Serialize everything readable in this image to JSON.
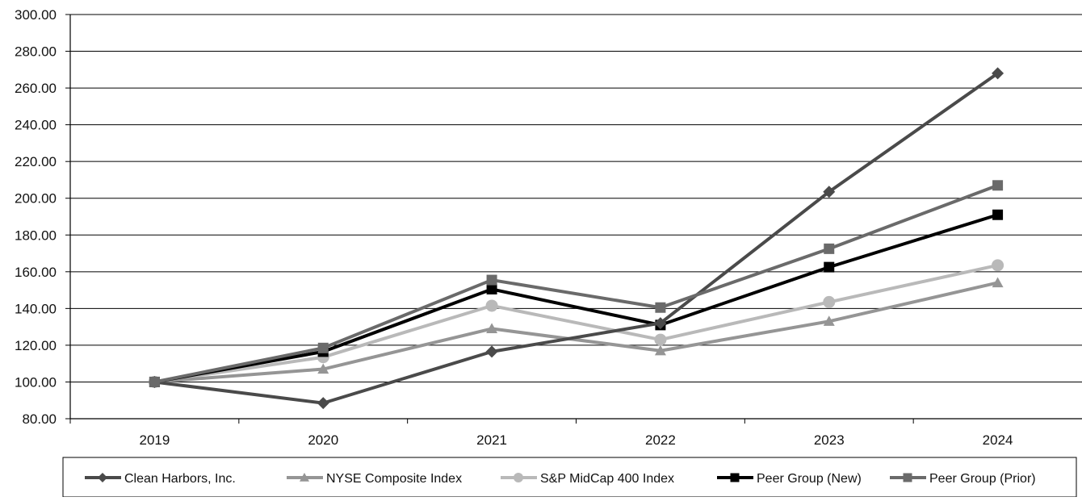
{
  "chart_data": {
    "type": "line",
    "title": "",
    "xlabel": "",
    "ylabel": "",
    "categories": [
      "2019",
      "2020",
      "2021",
      "2022",
      "2023",
      "2024"
    ],
    "ylim": [
      80,
      300
    ],
    "yticks": [
      "80.00",
      "100.00",
      "120.00",
      "140.00",
      "160.00",
      "180.00",
      "200.00",
      "220.00",
      "240.00",
      "260.00",
      "280.00",
      "300.00"
    ],
    "grid": "horizontal",
    "legend_position": "bottom",
    "series": [
      {
        "name": "Clean Harbors, Inc.",
        "marker": "diamond",
        "color": "#4a4a4a",
        "values": [
          100.0,
          88.5,
          116.5,
          132.0,
          203.5,
          268.0
        ]
      },
      {
        "name": "NYSE Composite Index",
        "marker": "triangle",
        "color": "#959595",
        "values": [
          100.0,
          107.0,
          129.0,
          117.0,
          133.0,
          154.0
        ]
      },
      {
        "name": "S&P MidCap 400 Index",
        "marker": "circle",
        "color": "#b9b9b9",
        "values": [
          100.0,
          113.5,
          141.5,
          123.0,
          143.5,
          163.5
        ]
      },
      {
        "name": "Peer Group (New)",
        "marker": "square",
        "color": "#000000",
        "values": [
          100.0,
          116.5,
          150.5,
          131.0,
          162.5,
          191.0
        ]
      },
      {
        "name": "Peer Group (Prior)",
        "marker": "square",
        "color": "#6a6a6a",
        "values": [
          100.0,
          118.5,
          155.5,
          140.5,
          172.5,
          207.0
        ]
      }
    ]
  }
}
